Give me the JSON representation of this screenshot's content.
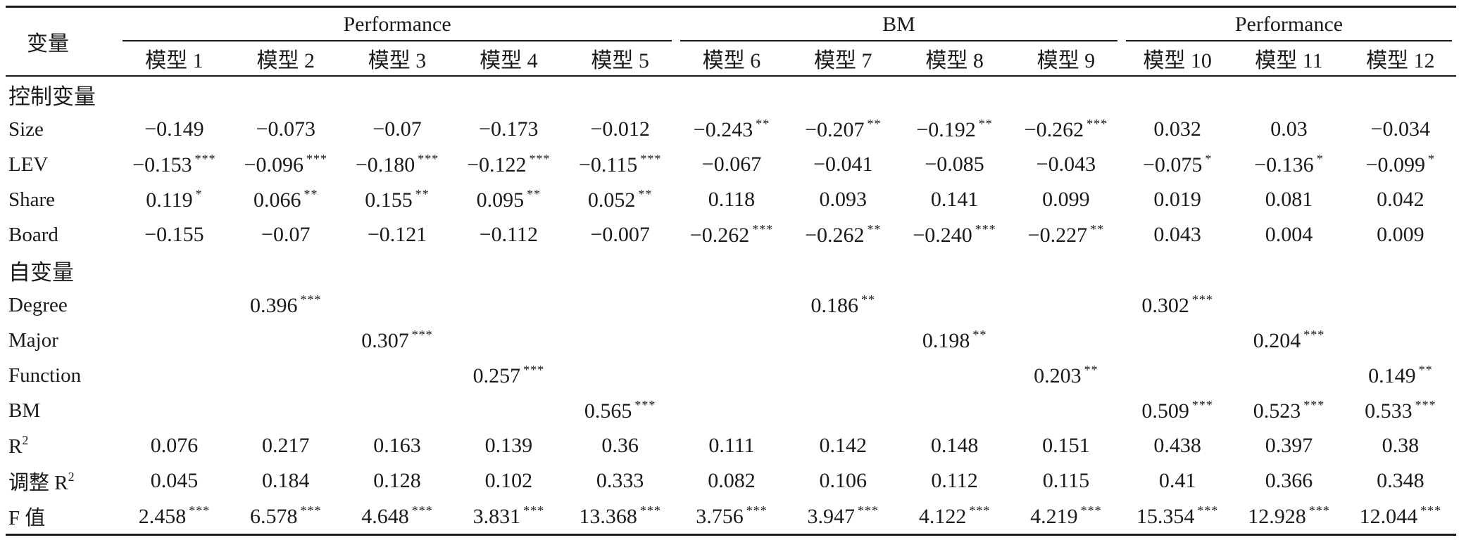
{
  "header": {
    "var_label": "变量",
    "groups": [
      {
        "label": "Performance",
        "span": 5
      },
      {
        "label": "BM",
        "span": 4
      },
      {
        "label": "Performance",
        "span": 3
      }
    ],
    "models": [
      "模型 1",
      "模型 2",
      "模型 3",
      "模型 4",
      "模型 5",
      "模型 6",
      "模型 7",
      "模型 8",
      "模型 9",
      "模型 10",
      "模型 11",
      "模型 12"
    ]
  },
  "rows": [
    {
      "label": "控制变量",
      "section": true,
      "cells": []
    },
    {
      "label": "Size",
      "cells": [
        {
          "v": "−0.149",
          "s": ""
        },
        {
          "v": "−0.073",
          "s": ""
        },
        {
          "v": "−0.07",
          "s": ""
        },
        {
          "v": "−0.173",
          "s": ""
        },
        {
          "v": "−0.012",
          "s": ""
        },
        {
          "v": "−0.243",
          "s": "**"
        },
        {
          "v": "−0.207",
          "s": "**"
        },
        {
          "v": "−0.192",
          "s": "**"
        },
        {
          "v": "−0.262",
          "s": "***"
        },
        {
          "v": "0.032",
          "s": ""
        },
        {
          "v": "0.03",
          "s": ""
        },
        {
          "v": "−0.034",
          "s": ""
        }
      ]
    },
    {
      "label": "LEV",
      "cells": [
        {
          "v": "−0.153",
          "s": "***"
        },
        {
          "v": "−0.096",
          "s": "***"
        },
        {
          "v": "−0.180",
          "s": "***"
        },
        {
          "v": "−0.122",
          "s": "***"
        },
        {
          "v": "−0.115",
          "s": "***"
        },
        {
          "v": "−0.067",
          "s": ""
        },
        {
          "v": "−0.041",
          "s": ""
        },
        {
          "v": "−0.085",
          "s": ""
        },
        {
          "v": "−0.043",
          "s": ""
        },
        {
          "v": "−0.075",
          "s": "*"
        },
        {
          "v": "−0.136",
          "s": "*"
        },
        {
          "v": "−0.099",
          "s": "*"
        }
      ]
    },
    {
      "label": "Share",
      "cells": [
        {
          "v": "0.119",
          "s": "*"
        },
        {
          "v": "0.066",
          "s": "**"
        },
        {
          "v": "0.155",
          "s": "**"
        },
        {
          "v": "0.095",
          "s": "**"
        },
        {
          "v": "0.052",
          "s": "**"
        },
        {
          "v": "0.118",
          "s": ""
        },
        {
          "v": "0.093",
          "s": ""
        },
        {
          "v": "0.141",
          "s": ""
        },
        {
          "v": "0.099",
          "s": ""
        },
        {
          "v": "0.019",
          "s": ""
        },
        {
          "v": "0.081",
          "s": ""
        },
        {
          "v": "0.042",
          "s": ""
        }
      ]
    },
    {
      "label": "Board",
      "cells": [
        {
          "v": "−0.155",
          "s": ""
        },
        {
          "v": "−0.07",
          "s": ""
        },
        {
          "v": "−0.121",
          "s": ""
        },
        {
          "v": "−0.112",
          "s": ""
        },
        {
          "v": "−0.007",
          "s": ""
        },
        {
          "v": "−0.262",
          "s": "***"
        },
        {
          "v": "−0.262",
          "s": "**"
        },
        {
          "v": "−0.240",
          "s": "***"
        },
        {
          "v": "−0.227",
          "s": "**"
        },
        {
          "v": "0.043",
          "s": ""
        },
        {
          "v": "0.004",
          "s": ""
        },
        {
          "v": "0.009",
          "s": ""
        }
      ]
    },
    {
      "label": "自变量",
      "section": true,
      "cells": []
    },
    {
      "label": "Degree",
      "cells": [
        {
          "v": "",
          "s": ""
        },
        {
          "v": "0.396",
          "s": "***"
        },
        {
          "v": "",
          "s": ""
        },
        {
          "v": "",
          "s": ""
        },
        {
          "v": "",
          "s": ""
        },
        {
          "v": "",
          "s": ""
        },
        {
          "v": "0.186",
          "s": "**"
        },
        {
          "v": "",
          "s": ""
        },
        {
          "v": "",
          "s": ""
        },
        {
          "v": "0.302",
          "s": "***"
        },
        {
          "v": "",
          "s": ""
        },
        {
          "v": "",
          "s": ""
        }
      ]
    },
    {
      "label": "Major",
      "cells": [
        {
          "v": "",
          "s": ""
        },
        {
          "v": "",
          "s": ""
        },
        {
          "v": "0.307",
          "s": "***"
        },
        {
          "v": "",
          "s": ""
        },
        {
          "v": "",
          "s": ""
        },
        {
          "v": "",
          "s": ""
        },
        {
          "v": "",
          "s": ""
        },
        {
          "v": "0.198",
          "s": "**"
        },
        {
          "v": "",
          "s": ""
        },
        {
          "v": "",
          "s": ""
        },
        {
          "v": "0.204",
          "s": "***"
        },
        {
          "v": "",
          "s": ""
        }
      ]
    },
    {
      "label": "Function",
      "cells": [
        {
          "v": "",
          "s": ""
        },
        {
          "v": "",
          "s": ""
        },
        {
          "v": "",
          "s": ""
        },
        {
          "v": "0.257",
          "s": "***"
        },
        {
          "v": "",
          "s": ""
        },
        {
          "v": "",
          "s": ""
        },
        {
          "v": "",
          "s": ""
        },
        {
          "v": "",
          "s": ""
        },
        {
          "v": "0.203",
          "s": "**"
        },
        {
          "v": "",
          "s": ""
        },
        {
          "v": "",
          "s": ""
        },
        {
          "v": "0.149",
          "s": "**"
        }
      ]
    },
    {
      "label": "BM",
      "cells": [
        {
          "v": "",
          "s": ""
        },
        {
          "v": "",
          "s": ""
        },
        {
          "v": "",
          "s": ""
        },
        {
          "v": "",
          "s": ""
        },
        {
          "v": "0.565",
          "s": "***"
        },
        {
          "v": "",
          "s": ""
        },
        {
          "v": "",
          "s": ""
        },
        {
          "v": "",
          "s": ""
        },
        {
          "v": "",
          "s": ""
        },
        {
          "v": "0.509",
          "s": "***"
        },
        {
          "v": "0.523",
          "s": "***"
        },
        {
          "v": "0.533",
          "s": "***"
        }
      ]
    },
    {
      "label": "R",
      "sup": "2",
      "cells": [
        {
          "v": "0.076",
          "s": ""
        },
        {
          "v": "0.217",
          "s": ""
        },
        {
          "v": "0.163",
          "s": ""
        },
        {
          "v": "0.139",
          "s": ""
        },
        {
          "v": "0.36",
          "s": ""
        },
        {
          "v": "0.111",
          "s": ""
        },
        {
          "v": "0.142",
          "s": ""
        },
        {
          "v": "0.148",
          "s": ""
        },
        {
          "v": "0.151",
          "s": ""
        },
        {
          "v": "0.438",
          "s": ""
        },
        {
          "v": "0.397",
          "s": ""
        },
        {
          "v": "0.38",
          "s": ""
        }
      ]
    },
    {
      "label": "调整 R",
      "sup": "2",
      "cells": [
        {
          "v": "0.045",
          "s": ""
        },
        {
          "v": "0.184",
          "s": ""
        },
        {
          "v": "0.128",
          "s": ""
        },
        {
          "v": "0.102",
          "s": ""
        },
        {
          "v": "0.333",
          "s": ""
        },
        {
          "v": "0.082",
          "s": ""
        },
        {
          "v": "0.106",
          "s": ""
        },
        {
          "v": "0.112",
          "s": ""
        },
        {
          "v": "0.115",
          "s": ""
        },
        {
          "v": "0.41",
          "s": ""
        },
        {
          "v": "0.366",
          "s": ""
        },
        {
          "v": "0.348",
          "s": ""
        }
      ]
    },
    {
      "label": "F 值",
      "cells": [
        {
          "v": "2.458",
          "s": "***"
        },
        {
          "v": "6.578",
          "s": "***"
        },
        {
          "v": "4.648",
          "s": "***"
        },
        {
          "v": "3.831",
          "s": "***"
        },
        {
          "v": "13.368",
          "s": "***"
        },
        {
          "v": "3.756",
          "s": "***"
        },
        {
          "v": "3.947",
          "s": "***"
        },
        {
          "v": "4.122",
          "s": "***"
        },
        {
          "v": "4.219",
          "s": "***"
        },
        {
          "v": "15.354",
          "s": "***"
        },
        {
          "v": "12.928",
          "s": "***"
        },
        {
          "v": "12.044",
          "s": "***"
        }
      ]
    }
  ]
}
